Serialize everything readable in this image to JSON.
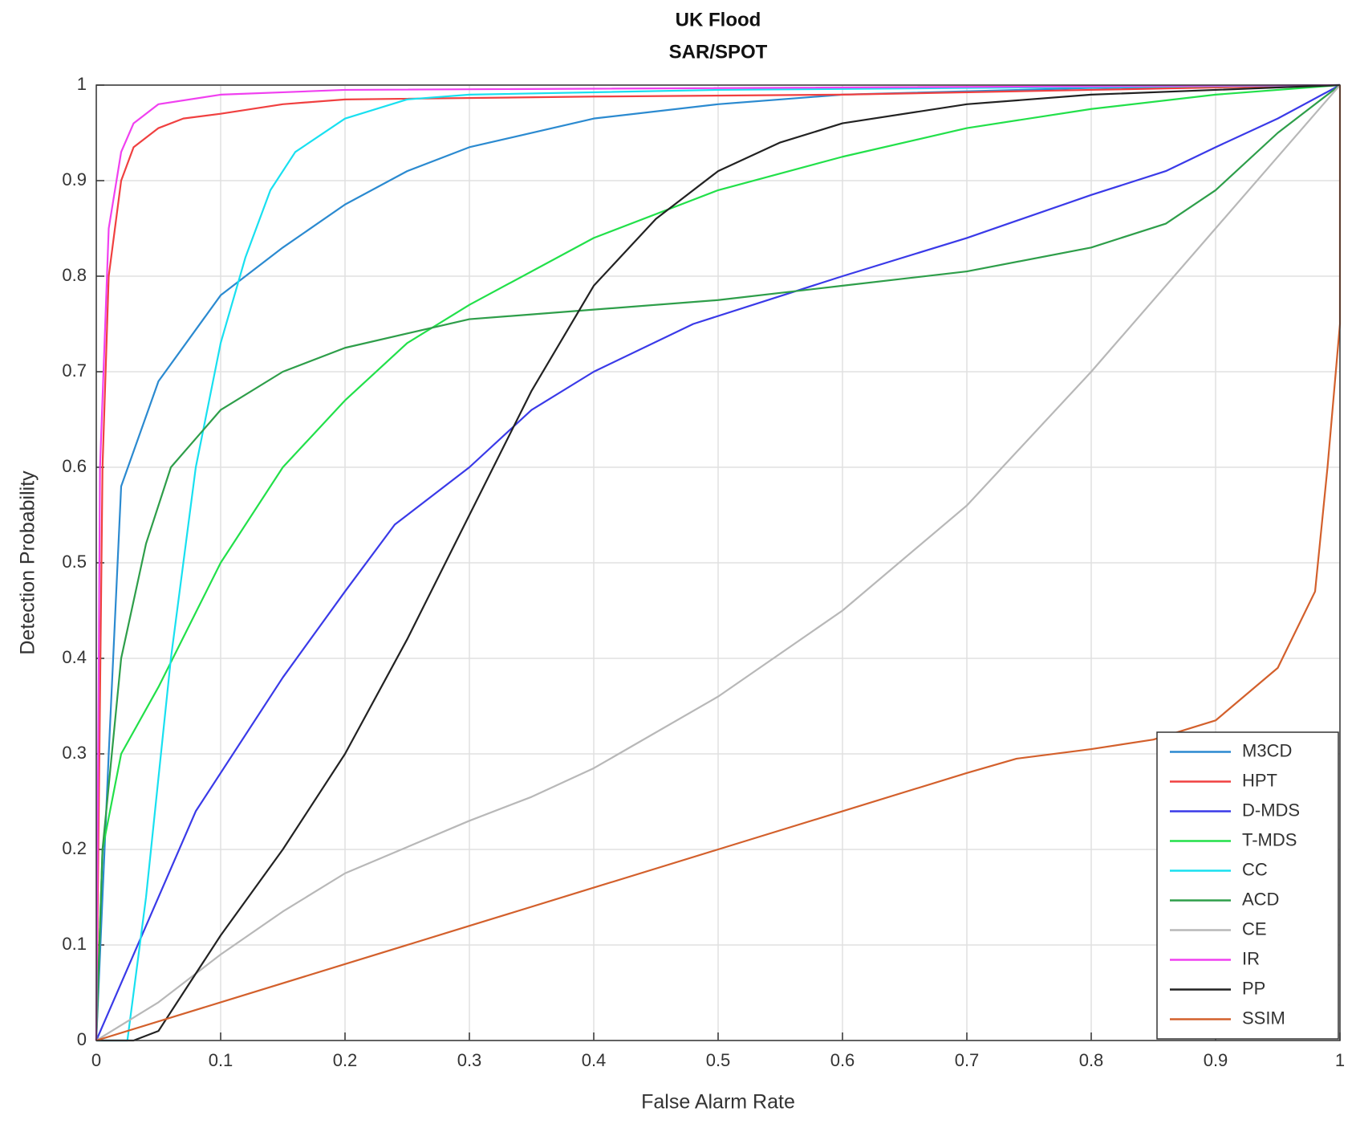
{
  "chart_data": {
    "type": "line",
    "title": "UK Flood",
    "subtitle": "SAR/SPOT",
    "x_label": "False Alarm Rate",
    "y_label": "Detection Probability",
    "xlim": [
      0,
      1
    ],
    "ylim": [
      0,
      1
    ],
    "xticks": [
      0,
      0.1,
      0.2,
      0.3,
      0.4,
      0.5,
      0.6,
      0.7,
      0.8,
      0.9,
      1
    ],
    "yticks": [
      0,
      0.1,
      0.2,
      0.3,
      0.4,
      0.5,
      0.6,
      0.7,
      0.8,
      0.9,
      1
    ],
    "grid": true,
    "legend": "lower right",
    "series": [
      {
        "name": "M3CD",
        "color": "#2b8ad0",
        "x": [
          0,
          0.01,
          0.02,
          0.05,
          0.1,
          0.15,
          0.2,
          0.25,
          0.3,
          0.4,
          0.5,
          0.6,
          0.8,
          1
        ],
        "values": [
          0,
          0.3,
          0.58,
          0.69,
          0.78,
          0.83,
          0.875,
          0.91,
          0.935,
          0.965,
          0.98,
          0.99,
          0.997,
          1
        ]
      },
      {
        "name": "HPT",
        "color": "#f04040",
        "x": [
          0,
          0.005,
          0.01,
          0.02,
          0.03,
          0.05,
          0.07,
          0.1,
          0.15,
          0.2,
          0.4,
          0.6,
          0.8,
          1
        ],
        "values": [
          0,
          0.6,
          0.8,
          0.9,
          0.935,
          0.955,
          0.965,
          0.97,
          0.98,
          0.985,
          0.988,
          0.99,
          0.995,
          1
        ]
      },
      {
        "name": "D-MDS",
        "color": "#3a3ae8",
        "x": [
          0,
          0.04,
          0.08,
          0.15,
          0.2,
          0.24,
          0.3,
          0.35,
          0.4,
          0.48,
          0.6,
          0.7,
          0.8,
          0.86,
          0.9,
          0.95,
          1
        ],
        "values": [
          0,
          0.12,
          0.24,
          0.38,
          0.47,
          0.54,
          0.6,
          0.66,
          0.7,
          0.75,
          0.8,
          0.84,
          0.885,
          0.91,
          0.935,
          0.965,
          1
        ]
      },
      {
        "name": "T-MDS",
        "color": "#22e04a",
        "x": [
          0,
          0.005,
          0.02,
          0.05,
          0.1,
          0.15,
          0.2,
          0.25,
          0.3,
          0.4,
          0.5,
          0.6,
          0.7,
          0.8,
          0.9,
          1
        ],
        "values": [
          0,
          0.2,
          0.3,
          0.37,
          0.5,
          0.6,
          0.67,
          0.73,
          0.77,
          0.84,
          0.89,
          0.925,
          0.955,
          0.975,
          0.99,
          1
        ]
      },
      {
        "name": "CC",
        "color": "#18e0f0",
        "x": [
          0,
          0.025,
          0.04,
          0.06,
          0.08,
          0.1,
          0.12,
          0.14,
          0.16,
          0.2,
          0.25,
          0.3,
          0.5,
          1
        ],
        "values": [
          0,
          0,
          0.15,
          0.4,
          0.6,
          0.73,
          0.82,
          0.89,
          0.93,
          0.965,
          0.985,
          0.99,
          0.995,
          1
        ]
      },
      {
        "name": "ACD",
        "color": "#2e9e4a",
        "x": [
          0,
          0.005,
          0.02,
          0.04,
          0.06,
          0.1,
          0.15,
          0.2,
          0.3,
          0.4,
          0.5,
          0.6,
          0.7,
          0.8,
          0.86,
          0.9,
          0.95,
          1
        ],
        "values": [
          0,
          0.2,
          0.4,
          0.52,
          0.6,
          0.66,
          0.7,
          0.725,
          0.755,
          0.765,
          0.775,
          0.79,
          0.805,
          0.83,
          0.855,
          0.89,
          0.95,
          1
        ]
      },
      {
        "name": "CE",
        "color": "#b8b8b8",
        "x": [
          0,
          0.05,
          0.1,
          0.15,
          0.2,
          0.3,
          0.35,
          0.4,
          0.5,
          0.6,
          0.7,
          0.8,
          0.9,
          1
        ],
        "values": [
          0,
          0.04,
          0.09,
          0.135,
          0.175,
          0.23,
          0.255,
          0.285,
          0.36,
          0.45,
          0.56,
          0.7,
          0.85,
          1
        ]
      },
      {
        "name": "IR",
        "color": "#f040f0",
        "x": [
          0,
          0.003,
          0.01,
          0.02,
          0.03,
          0.05,
          0.1,
          0.2,
          1
        ],
        "values": [
          0,
          0.6,
          0.85,
          0.93,
          0.96,
          0.98,
          0.99,
          0.995,
          1
        ]
      },
      {
        "name": "PP",
        "color": "#222222",
        "x": [
          0,
          0.03,
          0.05,
          0.07,
          0.1,
          0.15,
          0.2,
          0.25,
          0.3,
          0.35,
          0.4,
          0.45,
          0.5,
          0.55,
          0.6,
          0.7,
          0.8,
          1
        ],
        "values": [
          0,
          0,
          0.01,
          0.05,
          0.11,
          0.2,
          0.3,
          0.42,
          0.55,
          0.68,
          0.79,
          0.86,
          0.91,
          0.94,
          0.96,
          0.98,
          0.99,
          1
        ]
      },
      {
        "name": "SSIM",
        "color": "#d3602c",
        "x": [
          0,
          0.1,
          0.2,
          0.3,
          0.4,
          0.5,
          0.6,
          0.7,
          0.74,
          0.8,
          0.85,
          0.9,
          0.95,
          0.98,
          0.99,
          1,
          1
        ],
        "values": [
          0,
          0.04,
          0.08,
          0.12,
          0.16,
          0.2,
          0.24,
          0.28,
          0.295,
          0.305,
          0.315,
          0.335,
          0.39,
          0.47,
          0.6,
          0.75,
          1
        ]
      }
    ]
  }
}
